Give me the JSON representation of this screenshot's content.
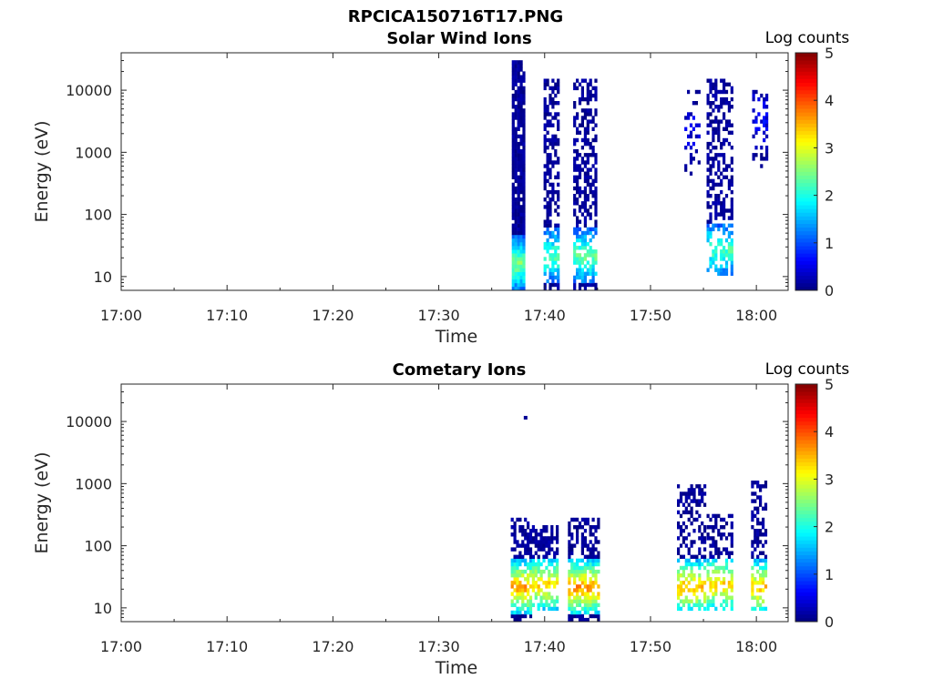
{
  "figure": {
    "title": "RPCICA150716T17.PNG"
  },
  "chart_data": [
    {
      "type": "heatmap",
      "title": "Solar Wind Ions",
      "xlabel": "Time",
      "ylabel": "Energy (eV)",
      "x_ticks": [
        "17:00",
        "17:10",
        "17:20",
        "17:30",
        "17:40",
        "17:50",
        "18:00"
      ],
      "x_range_minutes_after_1700": [
        0,
        63
      ],
      "y_scale": "log",
      "y_ticks": [
        10,
        100,
        1000,
        10000
      ],
      "y_range": [
        6,
        40000
      ],
      "colorbar": {
        "label": "Log counts",
        "ticks": [
          0,
          1,
          2,
          3,
          4,
          5
        ],
        "range": [
          0,
          5
        ],
        "colormap": "jet"
      },
      "bursts": [
        {
          "t0": 36.9,
          "t1": 38.1,
          "e_min": 6,
          "e_max": 30000,
          "density": 0.92,
          "peak": 2.3,
          "peak_e": 15
        },
        {
          "t0": 39.9,
          "t1": 41.3,
          "e_min": 6,
          "e_max": 15000,
          "density": 0.55,
          "peak": 2.1,
          "peak_e": 20
        },
        {
          "t0": 42.7,
          "t1": 44.9,
          "e_min": 6,
          "e_max": 15000,
          "density": 0.55,
          "peak": 2.2,
          "peak_e": 20
        },
        {
          "t0": 53.2,
          "t1": 54.7,
          "e_min": 400,
          "e_max": 10000,
          "density": 0.22,
          "peak": 0.2,
          "peak_e": 2000
        },
        {
          "t0": 55.3,
          "t1": 57.6,
          "e_min": 10,
          "e_max": 15000,
          "density": 0.5,
          "peak": 2.0,
          "peak_e": 25
        },
        {
          "t0": 59.6,
          "t1": 61.0,
          "e_min": 500,
          "e_max": 10000,
          "density": 0.3,
          "peak": 0.3,
          "peak_e": 3000
        }
      ]
    },
    {
      "type": "heatmap",
      "title": "Cometary Ions",
      "xlabel": "Time",
      "ylabel": "Energy (eV)",
      "x_ticks": [
        "17:00",
        "17:10",
        "17:20",
        "17:30",
        "17:40",
        "17:50",
        "18:00"
      ],
      "x_range_minutes_after_1700": [
        0,
        63
      ],
      "y_scale": "log",
      "y_ticks": [
        10,
        100,
        1000,
        10000
      ],
      "y_range": [
        6,
        40000
      ],
      "colorbar": {
        "label": "Log counts",
        "ticks": [
          0,
          1,
          2,
          3,
          4,
          5
        ],
        "range": [
          0,
          5
        ],
        "colormap": "jet"
      },
      "bursts": [
        {
          "t0": 36.8,
          "t1": 38.6,
          "e_min": 6,
          "e_max": 250,
          "density": 0.6,
          "peak": 3.4,
          "peak_e": 20
        },
        {
          "t0": 38.8,
          "t1": 41.3,
          "e_min": 8,
          "e_max": 200,
          "density": 0.55,
          "peak": 3.2,
          "peak_e": 22
        },
        {
          "t0": 42.2,
          "t1": 45.2,
          "e_min": 6,
          "e_max": 250,
          "density": 0.6,
          "peak": 3.5,
          "peak_e": 20
        },
        {
          "t0": 52.5,
          "t1": 55.2,
          "e_min": 8,
          "e_max": 900,
          "density": 0.45,
          "peak": 3.3,
          "peak_e": 20
        },
        {
          "t0": 55.3,
          "t1": 57.8,
          "e_min": 8,
          "e_max": 300,
          "density": 0.45,
          "peak": 3.2,
          "peak_e": 22
        },
        {
          "t0": 59.5,
          "t1": 61.0,
          "e_min": 8,
          "e_max": 1100,
          "density": 0.45,
          "peak": 3.3,
          "peak_e": 20
        }
      ],
      "isolated_points": [
        {
          "t": 38.2,
          "e": 11500,
          "value": 0.1
        }
      ]
    }
  ]
}
